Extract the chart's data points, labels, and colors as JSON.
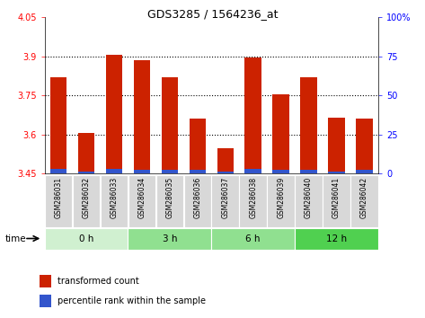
{
  "title": "GDS3285 / 1564236_at",
  "categories": [
    "GSM286031",
    "GSM286032",
    "GSM286033",
    "GSM286034",
    "GSM286035",
    "GSM286036",
    "GSM286037",
    "GSM286038",
    "GSM286039",
    "GSM286040",
    "GSM286041",
    "GSM286042"
  ],
  "red_values": [
    3.82,
    3.605,
    3.905,
    3.885,
    3.82,
    3.66,
    3.545,
    3.895,
    3.755,
    3.82,
    3.665,
    3.66
  ],
  "blue_values": [
    3.468,
    3.458,
    3.468,
    3.462,
    3.462,
    3.462,
    3.458,
    3.468,
    3.462,
    3.462,
    3.458,
    3.462
  ],
  "ymin": 3.45,
  "ymax": 4.05,
  "yticks": [
    3.45,
    3.6,
    3.75,
    3.9,
    4.05
  ],
  "ytick_labels": [
    "3.45",
    "3.6",
    "3.75",
    "3.9",
    "4.05"
  ],
  "y2ticks": [
    0,
    25,
    50,
    75,
    100
  ],
  "y2tick_labels": [
    "0",
    "25",
    "50",
    "75",
    "100%"
  ],
  "grid_values": [
    3.6,
    3.75,
    3.9
  ],
  "time_groups": [
    {
      "label": "0 h",
      "start": 0,
      "end": 3,
      "color": "#d0f0d0"
    },
    {
      "label": "3 h",
      "start": 3,
      "end": 6,
      "color": "#90e090"
    },
    {
      "label": "6 h",
      "start": 6,
      "end": 9,
      "color": "#90e090"
    },
    {
      "label": "12 h",
      "start": 9,
      "end": 12,
      "color": "#50d050"
    }
  ],
  "red_color": "#cc2200",
  "blue_color": "#3355cc",
  "bar_width": 0.6,
  "background_color": "#ffffff",
  "legend_red": "transformed count",
  "legend_blue": "percentile rank within the sample",
  "time_label": "time"
}
